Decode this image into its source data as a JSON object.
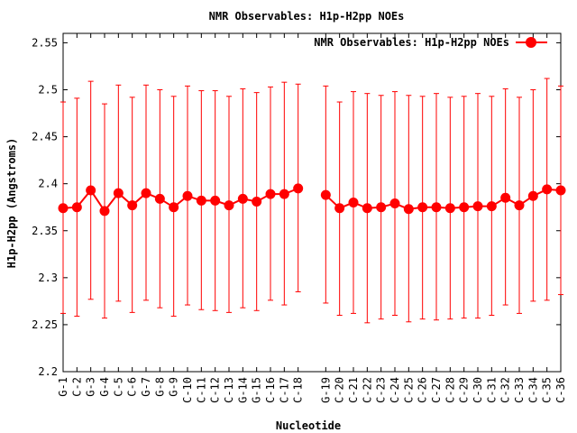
{
  "chart_data": {
    "type": "line",
    "title": "NMR Observables: H1p-H2pp NOEs",
    "xlabel": "Nucleotide",
    "ylabel": "H1p-H2pp (Angstroms)",
    "ylim": [
      2.2,
      2.56
    ],
    "yticks": [
      "2.2",
      "2.25",
      "2.3",
      "2.35",
      "2.4",
      "2.45",
      "2.5",
      "2.55"
    ],
    "grid": false,
    "legend_position": "top-right",
    "series": [
      {
        "name": "NMR Observables: H1p-H2pp NOEs",
        "color": "#ff0000",
        "segments": [
          {
            "categories": [
              "G-1",
              "C-2",
              "G-3",
              "G-4",
              "C-5",
              "C-6",
              "G-7",
              "G-8",
              "G-9",
              "C-10",
              "C-11",
              "C-12",
              "C-13",
              "G-14",
              "G-15",
              "C-16",
              "C-17",
              "C-18"
            ],
            "values": [
              2.374,
              2.375,
              2.393,
              2.371,
              2.39,
              2.377,
              2.39,
              2.384,
              2.375,
              2.387,
              2.382,
              2.382,
              2.377,
              2.384,
              2.381,
              2.389,
              2.389,
              2.395
            ],
            "err_low": [
              2.262,
              2.259,
              2.277,
              2.257,
              2.275,
              2.263,
              2.276,
              2.268,
              2.259,
              2.271,
              2.266,
              2.265,
              2.263,
              2.268,
              2.265,
              2.276,
              2.271,
              2.285
            ],
            "err_high": [
              2.487,
              2.491,
              2.509,
              2.485,
              2.505,
              2.492,
              2.505,
              2.5,
              2.493,
              2.504,
              2.499,
              2.499,
              2.493,
              2.501,
              2.497,
              2.503,
              2.508,
              2.506
            ]
          },
          {
            "categories": [
              "G-19",
              "C-20",
              "C-21",
              "C-22",
              "C-23",
              "C-24",
              "C-25",
              "C-26",
              "C-27",
              "C-28",
              "C-29",
              "C-30",
              "C-31",
              "C-32",
              "C-33",
              "C-34",
              "C-35",
              "C-36"
            ],
            "values": [
              2.388,
              2.374,
              2.38,
              2.374,
              2.375,
              2.379,
              2.373,
              2.375,
              2.375,
              2.374,
              2.375,
              2.376,
              2.376,
              2.385,
              2.377,
              2.387,
              2.394,
              2.393
            ],
            "err_low": [
              2.273,
              2.26,
              2.262,
              2.252,
              2.256,
              2.26,
              2.253,
              2.256,
              2.255,
              2.256,
              2.257,
              2.257,
              2.26,
              2.271,
              2.262,
              2.275,
              2.276,
              2.282
            ],
            "err_high": [
              2.504,
              2.487,
              2.498,
              2.496,
              2.494,
              2.498,
              2.494,
              2.493,
              2.496,
              2.492,
              2.493,
              2.496,
              2.493,
              2.501,
              2.492,
              2.5,
              2.512,
              2.504
            ]
          }
        ]
      }
    ]
  }
}
